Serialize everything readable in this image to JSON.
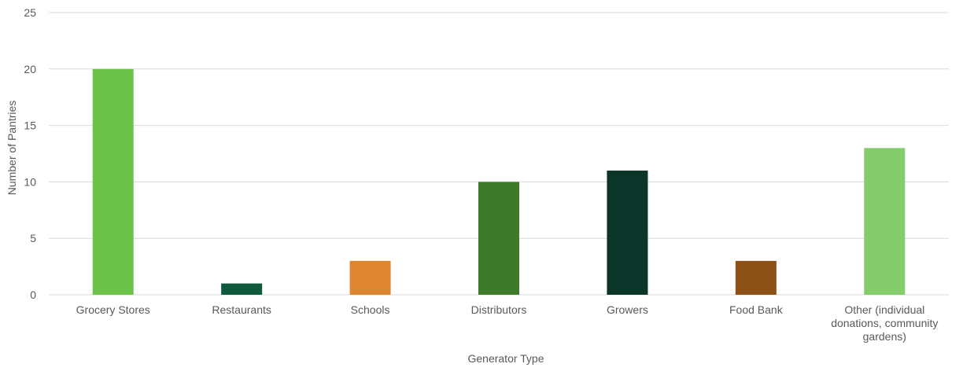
{
  "chart_data": {
    "type": "bar",
    "title": "",
    "xlabel": "Generator Type",
    "ylabel": "Number of Pantries",
    "ylim": [
      0,
      25
    ],
    "yticks": [
      0,
      5,
      10,
      15,
      20,
      25
    ],
    "grid": true,
    "legend": "none",
    "categories": [
      "Grocery Stores",
      "Restaurants",
      "Schools",
      "Distributors",
      "Growers",
      "Food Bank",
      "Other (individual donations, community gardens)"
    ],
    "category_label_lines": [
      [
        "Grocery Stores"
      ],
      [
        "Restaurants"
      ],
      [
        "Schools"
      ],
      [
        "Distributors"
      ],
      [
        "Growers"
      ],
      [
        "Food Bank"
      ],
      [
        "Other (individual",
        "donations, community",
        "gardens)"
      ]
    ],
    "values": [
      20,
      1,
      3,
      10,
      11,
      3,
      13
    ],
    "colors": [
      "#6cc24a",
      "#0f5a3c",
      "#de8532",
      "#3e7a2a",
      "#0b3528",
      "#8b5117",
      "#85cc6c"
    ]
  },
  "colors": {
    "gridline": "#d9d9d9",
    "text": "#595959"
  }
}
